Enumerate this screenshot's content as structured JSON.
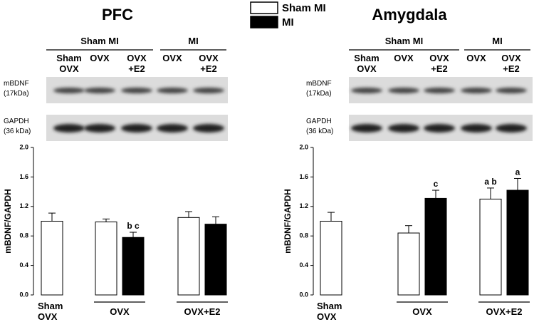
{
  "chart_data": [
    {
      "type": "bar",
      "title": "PFC",
      "ylabel": "mBDNF/GAPDH",
      "categories": [
        "Sham\nOVX",
        "OVX",
        "OVX+E2"
      ],
      "series": [
        {
          "name": "Sham MI",
          "color": "#ffffff",
          "values": [
            1.0,
            0.99,
            1.05
          ],
          "errors": [
            0.11,
            0.04,
            0.08
          ],
          "letters": [
            null,
            null,
            null
          ]
        },
        {
          "name": "MI",
          "color": "#000000",
          "values": [
            null,
            0.78,
            0.96
          ],
          "errors": [
            null,
            0.07,
            0.1
          ],
          "letters": [
            null,
            "b c",
            null
          ]
        }
      ],
      "ylim": [
        0,
        2.0
      ],
      "yticks": [
        {
          "value": 0,
          "label": "0.0"
        },
        {
          "value": 0.4,
          "label": "0.4"
        },
        {
          "value": 0.8,
          "label": "0.8"
        },
        {
          "value": 1.2,
          "label": "1.2"
        },
        {
          "value": 1.6,
          "label": "1.6"
        },
        {
          "value": 2.0,
          "label": "2.0"
        }
      ],
      "blot": {
        "groups": [
          "Sham MI",
          "MI"
        ],
        "lanes": [
          "Sham\nOVX",
          "OVX",
          "OVX\n+E2",
          "OVX",
          "OVX\n+E2"
        ],
        "rows": [
          "mBDNF\n(17kDa)",
          "GAPDH\n(36 kDa)"
        ]
      }
    },
    {
      "type": "bar",
      "title": "Amygdala",
      "ylabel": "mBDNF/GAPDH",
      "categories": [
        "Sham\nOVX",
        "OVX",
        "OVX+E2"
      ],
      "series": [
        {
          "name": "Sham MI",
          "color": "#ffffff",
          "values": [
            1.0,
            0.84,
            1.3
          ],
          "errors": [
            0.12,
            0.1,
            0.15
          ],
          "letters": [
            null,
            null,
            "a b"
          ]
        },
        {
          "name": "MI",
          "color": "#000000",
          "values": [
            null,
            1.31,
            1.42
          ],
          "errors": [
            null,
            0.11,
            0.16
          ],
          "letters": [
            null,
            "c",
            "a"
          ]
        }
      ],
      "ylim": [
        0,
        2.0
      ],
      "yticks": [
        {
          "value": 0,
          "label": "0.0"
        },
        {
          "value": 0.4,
          "label": "0.4"
        },
        {
          "value": 0.8,
          "label": "0.8"
        },
        {
          "value": 1.2,
          "label": "1.2"
        },
        {
          "value": 1.6,
          "label": "1.6"
        },
        {
          "value": 2.0,
          "label": "2.0"
        }
      ],
      "blot": {
        "groups": [
          "Sham MI",
          "MI"
        ],
        "lanes": [
          "Sham\nOVX",
          "OVX",
          "OVX\n+E2",
          "OVX",
          "OVX\n+E2"
        ],
        "rows": [
          "mBDNF\n(17kDa)",
          "GAPDH\n(36 kDa)"
        ]
      }
    }
  ]
}
